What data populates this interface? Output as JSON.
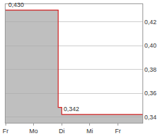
{
  "chart_data": {
    "type": "area",
    "categories": [
      "Fr",
      null,
      null,
      null,
      null,
      null,
      null,
      null,
      "Mo",
      null,
      null,
      null,
      null,
      null,
      null,
      null,
      "Di",
      null,
      null,
      null,
      null,
      null,
      null,
      null,
      "Mi",
      null,
      null,
      null,
      null,
      null,
      null,
      null,
      "Fr",
      null,
      null,
      null,
      null,
      null,
      null,
      null
    ],
    "values": [
      0.43,
      0.43,
      0.43,
      0.43,
      0.43,
      0.43,
      0.43,
      0.43,
      0.43,
      0.43,
      0.43,
      0.43,
      0.43,
      0.43,
      0.43,
      0.348,
      0.342,
      0.342,
      0.342,
      0.342,
      0.342,
      0.342,
      0.342,
      0.342,
      0.342,
      0.342,
      0.342,
      0.342,
      0.342,
      0.342,
      0.342,
      0.342,
      0.342,
      0.342,
      0.342,
      0.342,
      0.342,
      0.342,
      0.342,
      0.342
    ],
    "color": "#d42020",
    "ylim": [
      0.335,
      0.435
    ],
    "yticks": [
      {
        "value": 0.34,
        "label": "0,34"
      },
      {
        "value": 0.36,
        "label": "0,36"
      },
      {
        "value": 0.38,
        "label": "0,38"
      },
      {
        "value": 0.4,
        "label": "0,40"
      },
      {
        "value": 0.42,
        "label": "0,42"
      }
    ],
    "annotations": [
      {
        "label": "0,430",
        "value": 0.43
      },
      {
        "label": "0,342",
        "value": 0.342
      }
    ],
    "grid": true
  }
}
